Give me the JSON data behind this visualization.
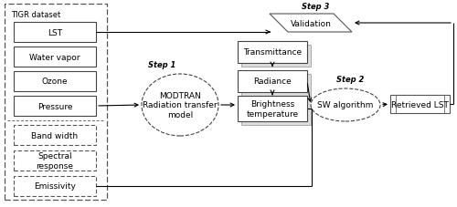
{
  "bg_color": "#ffffff",
  "tigr_label": "TIGR dataset",
  "left_boxes_solid": [
    "LST",
    "Water vapor",
    "Ozone",
    "Pressure"
  ],
  "left_boxes_dashed": [
    "Band width",
    "Spectral\nresponse",
    "Emissivity"
  ],
  "modtran_label": "MODTRAN\nRadiation transfer\nmodel",
  "step1_label": "Step 1",
  "middle_boxes": [
    "Transmittance",
    "Radiance",
    "Brightness\ntemperature"
  ],
  "sw_label": "SW algorithm",
  "step2_label": "Step 2",
  "retrieved_label": "Retrieved LST",
  "validation_label": "Validation",
  "step3_label": "Step 3",
  "font_size": 6.5,
  "small_font": 6.0
}
